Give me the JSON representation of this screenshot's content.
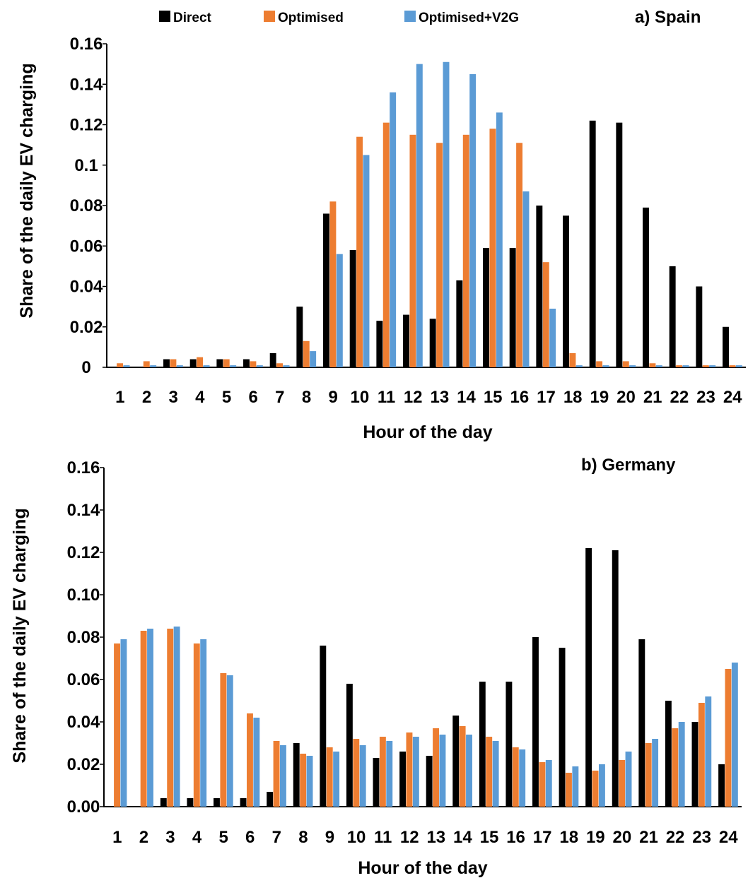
{
  "legend": [
    {
      "name": "Direct",
      "color": "#000000"
    },
    {
      "name": "Optimised",
      "color": "#ED7D31"
    },
    {
      "name": "Optimised+V2G",
      "color": "#5B9BD5"
    }
  ],
  "chart_data": [
    {
      "type": "bar",
      "title": "a) Spain",
      "xlabel": "Hour of the day",
      "ylabel": "Share of the daily EV charging",
      "ylim": [
        0,
        0.16
      ],
      "yticks": [
        "0",
        "0.02",
        "0.04",
        "0.06",
        "0.08",
        "0.1",
        "0.12",
        "0.14",
        "0.16"
      ],
      "categories": [
        "1",
        "2",
        "3",
        "4",
        "5",
        "6",
        "7",
        "8",
        "9",
        "10",
        "11",
        "12",
        "13",
        "14",
        "15",
        "16",
        "17",
        "18",
        "19",
        "20",
        "21",
        "22",
        "23",
        "24"
      ],
      "grid": false,
      "legend_position": "top",
      "series": [
        {
          "name": "Direct",
          "color": "#000000",
          "values": [
            0,
            0,
            0.004,
            0.004,
            0.004,
            0.004,
            0.007,
            0.03,
            0.076,
            0.058,
            0.023,
            0.026,
            0.024,
            0.043,
            0.059,
            0.059,
            0.08,
            0.075,
            0.122,
            0.121,
            0.079,
            0.05,
            0.04,
            0.02
          ]
        },
        {
          "name": "Optimised",
          "color": "#ED7D31",
          "values": [
            0.002,
            0.003,
            0.004,
            0.005,
            0.004,
            0.003,
            0.002,
            0.013,
            0.082,
            0.114,
            0.121,
            0.115,
            0.111,
            0.115,
            0.118,
            0.111,
            0.052,
            0.007,
            0.003,
            0.003,
            0.002,
            0.001,
            0.001,
            0.001
          ]
        },
        {
          "name": "Optimised+V2G",
          "color": "#5B9BD5",
          "values": [
            0.001,
            0.001,
            0.001,
            0.001,
            0.001,
            0.001,
            0.001,
            0.008,
            0.056,
            0.105,
            0.136,
            0.15,
            0.151,
            0.145,
            0.126,
            0.087,
            0.029,
            0.001,
            0.001,
            0.001,
            0.001,
            0.001,
            0.001,
            0.001
          ]
        }
      ]
    },
    {
      "type": "bar",
      "title": "b) Germany",
      "xlabel": "Hour of the day",
      "ylabel": "Share of the daily EV charging",
      "ylim": [
        0,
        0.16
      ],
      "yticks": [
        "0.00",
        "0.02",
        "0.04",
        "0.06",
        "0.08",
        "0.10",
        "0.12",
        "0.14",
        "0.16"
      ],
      "categories": [
        "1",
        "2",
        "3",
        "4",
        "5",
        "6",
        "7",
        "8",
        "9",
        "10",
        "11",
        "12",
        "13",
        "14",
        "15",
        "16",
        "17",
        "18",
        "19",
        "20",
        "21",
        "22",
        "23",
        "24"
      ],
      "grid": false,
      "series": [
        {
          "name": "Direct",
          "color": "#000000",
          "values": [
            0,
            0,
            0.004,
            0.004,
            0.004,
            0.004,
            0.007,
            0.03,
            0.076,
            0.058,
            0.023,
            0.026,
            0.024,
            0.043,
            0.059,
            0.059,
            0.08,
            0.075,
            0.122,
            0.121,
            0.079,
            0.05,
            0.04,
            0.02
          ]
        },
        {
          "name": "Optimised",
          "color": "#ED7D31",
          "values": [
            0.077,
            0.083,
            0.084,
            0.077,
            0.063,
            0.044,
            0.031,
            0.025,
            0.028,
            0.032,
            0.033,
            0.035,
            0.037,
            0.038,
            0.033,
            0.028,
            0.021,
            0.016,
            0.017,
            0.022,
            0.03,
            0.037,
            0.049,
            0.065
          ]
        },
        {
          "name": "Optimised+V2G",
          "color": "#5B9BD5",
          "values": [
            0.079,
            0.084,
            0.085,
            0.079,
            0.062,
            0.042,
            0.029,
            0.024,
            0.026,
            0.029,
            0.031,
            0.033,
            0.034,
            0.034,
            0.031,
            0.027,
            0.022,
            0.019,
            0.02,
            0.026,
            0.032,
            0.04,
            0.052,
            0.068
          ]
        }
      ]
    }
  ]
}
